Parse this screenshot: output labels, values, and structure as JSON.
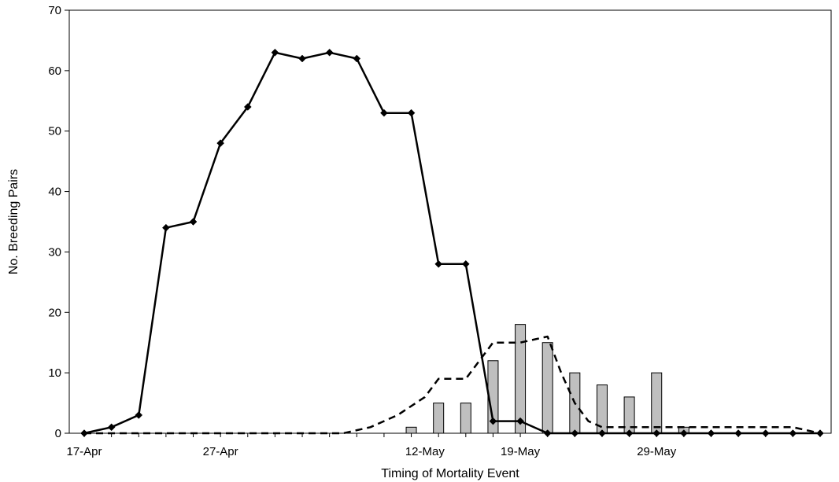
{
  "chart_data": {
    "type": "bar",
    "title": "",
    "xlabel": "Timing  of Mortality Event",
    "ylabel": "No. Breeding Pairs",
    "ylim": [
      0,
      70
    ],
    "yticks": [
      0,
      10,
      20,
      30,
      40,
      50,
      60,
      70
    ],
    "grid": false,
    "legend": "none",
    "x_axis": {
      "type": "date",
      "start": "17-Apr",
      "end": "10-Jun",
      "tick_labels": [
        "17-Apr",
        "27-Apr",
        "12-May",
        "19-May",
        "29-May"
      ],
      "tick_positions": [
        "17-Apr",
        "27-Apr",
        "12-May",
        "19-May",
        "29-May"
      ]
    },
    "series": [
      {
        "type": "bar",
        "color": "#bfbfbf",
        "edge_color": "#000000",
        "x": [
          "11-May",
          "13-May",
          "15-May",
          "17-May",
          "19-May",
          "21-May",
          "23-May",
          "25-May",
          "27-May",
          "29-May",
          "31-May"
        ],
        "values": [
          1,
          5,
          5,
          12,
          18,
          15,
          10,
          8,
          6,
          10,
          1
        ]
      },
      {
        "type": "line",
        "style": "solid",
        "marker": "diamond",
        "color": "#000000",
        "x": [
          "17-Apr",
          "19-Apr",
          "21-Apr",
          "23-Apr",
          "25-Apr",
          "27-Apr",
          "29-Apr",
          "1-May",
          "3-May",
          "5-May",
          "7-May",
          "9-May",
          "11-May",
          "13-May",
          "15-May",
          "17-May",
          "19-May",
          "21-May",
          "23-May",
          "25-May",
          "27-May",
          "29-May",
          "31-May",
          "2-Jun",
          "4-Jun",
          "6-Jun",
          "8-Jun",
          "10-Jun"
        ],
        "values": [
          0,
          1,
          3,
          34,
          35,
          48,
          54,
          63,
          62,
          63,
          62,
          53,
          53,
          28,
          28,
          2,
          2,
          0,
          0,
          0,
          0,
          0,
          0,
          0,
          0,
          0,
          0,
          0
        ]
      },
      {
        "type": "line",
        "style": "dashed",
        "marker": "none",
        "color": "#000000",
        "x": [
          "17-Apr",
          "6-May",
          "8-May",
          "10-May",
          "12-May",
          "13-May",
          "14-May",
          "15-May",
          "16-May",
          "17-May",
          "19-May",
          "21-May",
          "22-May",
          "23-May",
          "24-May",
          "25-May",
          "26-May",
          "29-May",
          "2-Jun",
          "4-Jun",
          "8-Jun",
          "10-Jun"
        ],
        "values": [
          0,
          0,
          1,
          3,
          6,
          9,
          9,
          9,
          12,
          15,
          15,
          16,
          10,
          5,
          2,
          1,
          1,
          1,
          1,
          1,
          1,
          0
        ]
      }
    ]
  }
}
